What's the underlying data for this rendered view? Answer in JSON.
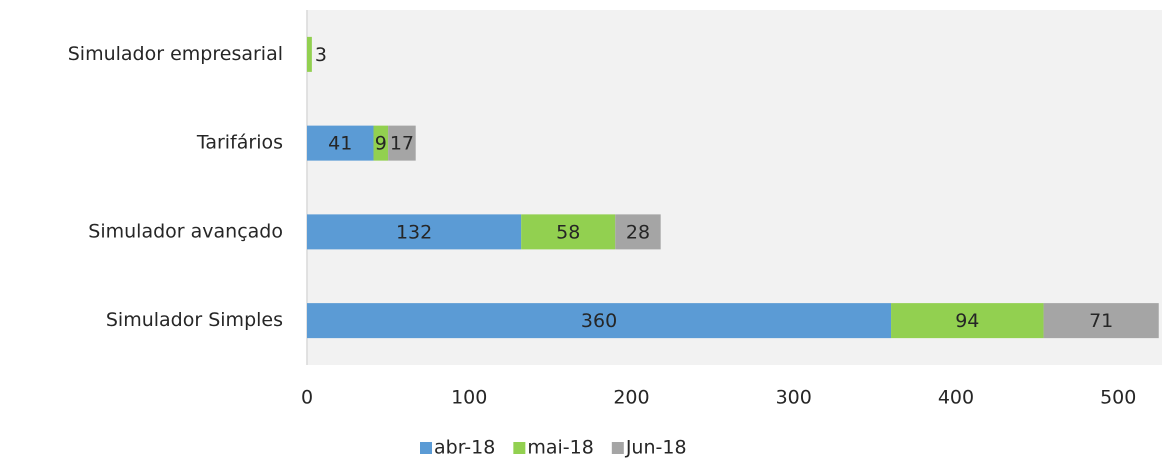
{
  "chart_data": {
    "type": "stacked-barh",
    "categories": [
      "Simulador empresarial",
      "Tarifários",
      "Simulador avançado",
      "Simulador Simples"
    ],
    "series": [
      {
        "name": "abr-18",
        "color": "#5b9bd5",
        "values": [
          null,
          41,
          132,
          360
        ]
      },
      {
        "name": "mai-18",
        "color": "#92d050",
        "values": [
          3,
          9,
          58,
          94
        ]
      },
      {
        "name": "Jun-18",
        "color": "#a5a5a5",
        "values": [
          null,
          17,
          28,
          71
        ]
      }
    ],
    "xlim": [
      0,
      527
    ],
    "xticks": [
      0,
      100,
      200,
      300,
      400,
      500
    ],
    "legend": "bottom"
  }
}
